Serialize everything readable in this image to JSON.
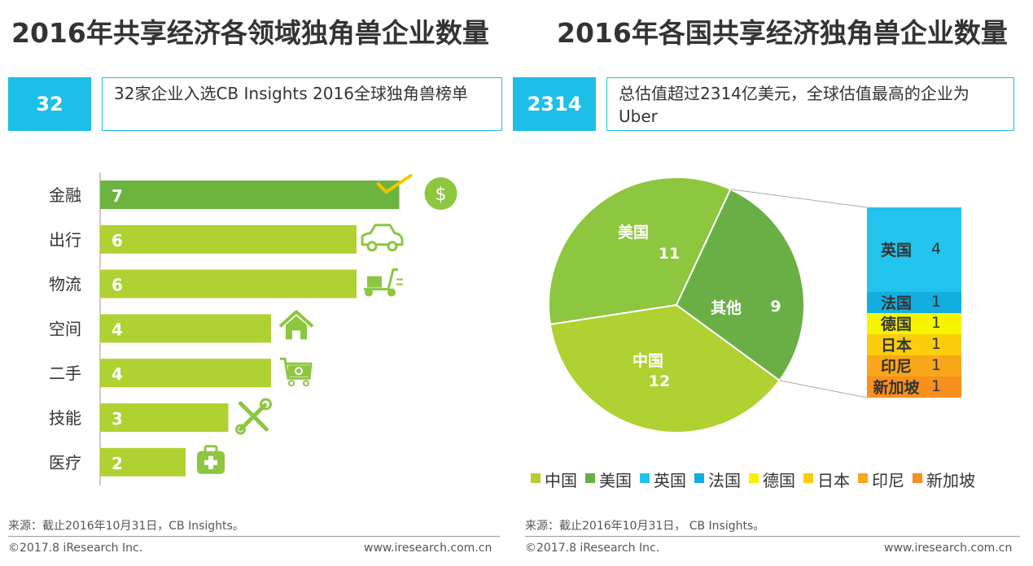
{
  "left": {
    "title": "2016年共享经济各领域独角兽企业数量",
    "stat_value": "32",
    "stat_text": "32家企业入选CB Insights 2016全球独角兽榜单",
    "source": "来源：截止2016年10月31日，CB Insights。",
    "copyright": "©2017.8 iResearch Inc.",
    "website": "www.iresearch.com.cn"
  },
  "right": {
    "title": "2016年各国共享经济独角兽企业数量",
    "stat_value": "2314",
    "stat_text": "总估值超过2314亿美元，全球估值最高的企业为Uber",
    "source": "来源：截止2016年10月31日， CB Insights。",
    "copyright": "©2017.8 iResearch Inc.",
    "website": "www.iresearch.com.cn"
  },
  "chart_data": [
    {
      "type": "bar",
      "orientation": "horizontal",
      "title": "2016年共享经济各领域独角兽企业数量",
      "categories": [
        "金融",
        "出行",
        "物流",
        "空间",
        "二手",
        "技能",
        "医疗"
      ],
      "values": [
        7,
        6,
        6,
        4,
        4,
        3,
        2
      ],
      "icons": [
        "dollar-icon",
        "car-icon",
        "scooter-icon",
        "house-icon",
        "cart-icon",
        "tools-icon",
        "medkit-icon"
      ],
      "colors": {
        "first": "#6db33f",
        "rest": "#b0d132",
        "icon": "#8dc63f",
        "check": "#f5c400"
      }
    },
    {
      "type": "pie",
      "title": "2016年各国共享经济独角兽企业数量",
      "slices": [
        {
          "label": "中国",
          "value": 12,
          "color": "#b0d132"
        },
        {
          "label": "美国",
          "value": 11,
          "color": "#8dc63f"
        },
        {
          "label": "其他",
          "value": 9,
          "color": "#6aaf45"
        }
      ],
      "breakdown_of": "其他",
      "breakdown": [
        {
          "label": "英国",
          "value": 4,
          "color": "#22c4ee"
        },
        {
          "label": "法国",
          "value": 1,
          "color": "#12aee0"
        },
        {
          "label": "德国",
          "value": 1,
          "color": "#f7f400"
        },
        {
          "label": "日本",
          "value": 1,
          "color": "#fbcd0a"
        },
        {
          "label": "印尼",
          "value": 1,
          "color": "#faa61a"
        },
        {
          "label": "新加坡",
          "value": 1,
          "color": "#f7901e"
        }
      ],
      "legend": [
        {
          "label": "中国",
          "color": "#b0d132"
        },
        {
          "label": "美国",
          "color": "#6aaf45"
        },
        {
          "label": "英国",
          "color": "#22c4ee"
        },
        {
          "label": "法国",
          "color": "#12aee0"
        },
        {
          "label": "德国",
          "color": "#f7f400"
        },
        {
          "label": "日本",
          "color": "#fbcd0a"
        },
        {
          "label": "印尼",
          "color": "#faa61a"
        },
        {
          "label": "新加坡",
          "color": "#f7901e"
        }
      ]
    }
  ]
}
